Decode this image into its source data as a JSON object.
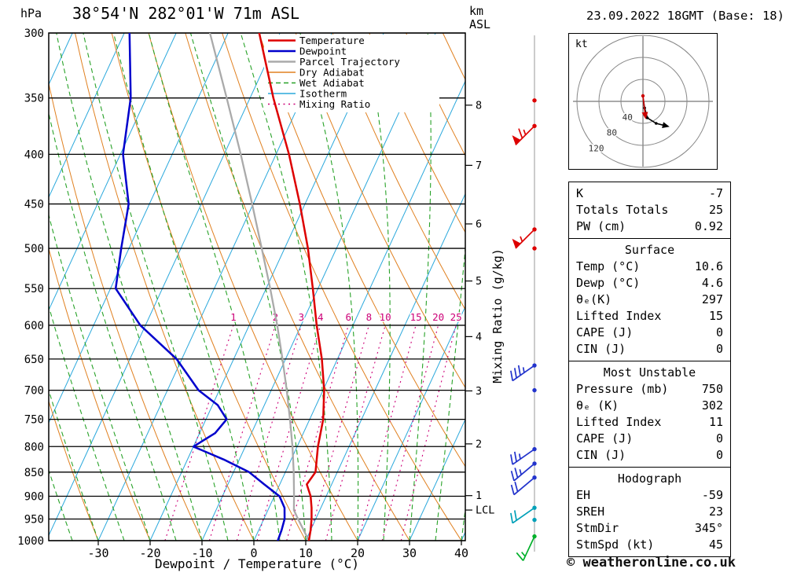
{
  "header": {
    "station": "38°54'N 282°01'W 71m ASL",
    "datetime": "23.09.2022 18GMT (Base: 18)"
  },
  "footer": {
    "copyright": "© weatheronline.co.uk"
  },
  "axes": {
    "pressure_unit": "hPa",
    "km_unit_line1": "km",
    "km_unit_line2": "ASL",
    "pressure_ticks": [
      300,
      350,
      400,
      450,
      500,
      550,
      600,
      650,
      700,
      750,
      800,
      850,
      900,
      950,
      1000
    ],
    "temp_ticks": [
      -30,
      -20,
      -10,
      0,
      10,
      20,
      30,
      40
    ],
    "temp_axis_label": "Dewpoint / Temperature (°C)",
    "km_ticks": [
      1,
      2,
      3,
      4,
      5,
      6,
      7,
      8
    ],
    "mixing_axis_label": "Mixing Ratio (g/kg)",
    "lcl_label": "LCL"
  },
  "colors": {
    "temperature": "#dd0000",
    "dewpoint": "#0000cc",
    "parcel": "#aaaaaa",
    "dry_adiabat": "#e08020",
    "wet_adiabat": "#28a228",
    "isotherm": "#2aa8dc",
    "mixing_ratio": "#cc0077",
    "pressure_line": "#000000",
    "wind_staff": "#999999"
  },
  "legend": {
    "entries": [
      {
        "label": "Temperature",
        "key": "temperature",
        "style": "solid"
      },
      {
        "label": "Dewpoint",
        "key": "dewpoint",
        "style": "solid"
      },
      {
        "label": "Parcel Trajectory",
        "key": "parcel",
        "style": "solid"
      },
      {
        "label": "Dry Adiabat",
        "key": "dry_adiabat",
        "style": "solid"
      },
      {
        "label": "Wet Adiabat",
        "key": "wet_adiabat",
        "style": "dashed"
      },
      {
        "label": "Isotherm",
        "key": "isotherm",
        "style": "solid"
      },
      {
        "label": "Mixing Ratio",
        "key": "mixing_ratio",
        "style": "dotted"
      }
    ]
  },
  "chart_data": {
    "type": "line",
    "projection": "skew-T log-P",
    "x_axis": {
      "label": "Dewpoint / Temperature (°C)",
      "range_c": [
        -40,
        40
      ]
    },
    "y_axis": {
      "label": "hPa",
      "scale": "log",
      "range_hpa": [
        1000,
        300
      ]
    },
    "series": [
      {
        "name": "Temperature",
        "points_p_T": [
          [
            1000,
            10.6
          ],
          [
            975,
            10.0
          ],
          [
            950,
            9.2
          ],
          [
            925,
            8.2
          ],
          [
            900,
            7.0
          ],
          [
            875,
            5.2
          ],
          [
            850,
            5.8
          ],
          [
            800,
            4.0
          ],
          [
            750,
            2.6
          ],
          [
            700,
            0.2
          ],
          [
            650,
            -3.0
          ],
          [
            600,
            -7.0
          ],
          [
            550,
            -11.0
          ],
          [
            500,
            -15.5
          ],
          [
            450,
            -21.0
          ],
          [
            400,
            -27.5
          ],
          [
            350,
            -35.5
          ],
          [
            300,
            -44.0
          ]
        ]
      },
      {
        "name": "Dewpoint",
        "points_p_T": [
          [
            1000,
            4.6
          ],
          [
            975,
            4.4
          ],
          [
            950,
            4.0
          ],
          [
            925,
            3.0
          ],
          [
            900,
            1.0
          ],
          [
            875,
            -3.0
          ],
          [
            850,
            -7.0
          ],
          [
            825,
            -13.0
          ],
          [
            800,
            -20.0
          ],
          [
            775,
            -17.0
          ],
          [
            750,
            -16.0
          ],
          [
            725,
            -19.0
          ],
          [
            700,
            -24.0
          ],
          [
            650,
            -31.0
          ],
          [
            600,
            -41.0
          ],
          [
            550,
            -49.0
          ],
          [
            500,
            -51.5
          ],
          [
            450,
            -54.0
          ],
          [
            400,
            -59.5
          ],
          [
            350,
            -63.0
          ],
          [
            300,
            -69.0
          ]
        ]
      },
      {
        "name": "Parcel Trajectory",
        "points_p_T": [
          [
            1000,
            10.6
          ],
          [
            950,
            6.6
          ],
          [
            930,
            5.0
          ],
          [
            900,
            3.8
          ],
          [
            850,
            1.6
          ],
          [
            800,
            -0.9
          ],
          [
            750,
            -3.8
          ],
          [
            700,
            -7.0
          ],
          [
            650,
            -10.6
          ],
          [
            600,
            -14.6
          ],
          [
            550,
            -19.2
          ],
          [
            500,
            -24.4
          ],
          [
            450,
            -30.2
          ],
          [
            400,
            -36.8
          ],
          [
            350,
            -44.5
          ],
          [
            300,
            -53.5
          ]
        ]
      }
    ],
    "mixing_ratio_lines_g_kg": [
      1,
      2,
      3,
      4,
      6,
      8,
      10,
      15,
      20,
      25
    ],
    "lcl_pressure_hpa": 930,
    "wind_barbs": [
      {
        "p_hpa": 352,
        "type": "dot",
        "color": "#dd0000"
      },
      {
        "p_hpa": 374,
        "type": "barb",
        "speed_kt": 65,
        "dir_deg": 225,
        "color": "#dd0000"
      },
      {
        "p_hpa": 478,
        "type": "barb",
        "speed_kt": 55,
        "dir_deg": 225,
        "color": "#dd0000"
      },
      {
        "p_hpa": 500,
        "type": "dot",
        "color": "#dd0000"
      },
      {
        "p_hpa": 660,
        "type": "barb",
        "speed_kt": 35,
        "dir_deg": 235,
        "color": "#2233cc"
      },
      {
        "p_hpa": 700,
        "type": "dot",
        "color": "#2233cc"
      },
      {
        "p_hpa": 805,
        "type": "barb",
        "speed_kt": 25,
        "dir_deg": 235,
        "color": "#2233cc"
      },
      {
        "p_hpa": 833,
        "type": "barb",
        "speed_kt": 25,
        "dir_deg": 230,
        "color": "#2233cc"
      },
      {
        "p_hpa": 861,
        "type": "barb",
        "speed_kt": 20,
        "dir_deg": 230,
        "color": "#2233cc"
      },
      {
        "p_hpa": 925,
        "type": "barb",
        "speed_kt": 20,
        "dir_deg": 235,
        "color": "#00a0b8"
      },
      {
        "p_hpa": 952,
        "type": "dot",
        "color": "#00a0b8"
      },
      {
        "p_hpa": 990,
        "type": "barb",
        "speed_kt": 15,
        "dir_deg": 205,
        "color": "#00b02a"
      }
    ]
  },
  "hodograph": {
    "unit": "kt",
    "rings_kt": [
      40,
      80,
      120
    ],
    "trace_kt": [
      [
        0,
        8
      ],
      [
        3,
        -12
      ],
      [
        8,
        -30
      ],
      [
        24,
        -40
      ],
      [
        40,
        -44
      ]
    ],
    "storm_vector_kt": [
      [
        0,
        10
      ],
      [
        4,
        -24
      ]
    ]
  },
  "stats": {
    "groups": [
      {
        "rows": [
          [
            "K",
            "-7"
          ],
          [
            "Totals Totals",
            "25"
          ],
          [
            "PW (cm)",
            "0.92"
          ]
        ]
      },
      {
        "header": "Surface",
        "rows": [
          [
            "Temp (°C)",
            "10.6"
          ],
          [
            "Dewp (°C)",
            "4.6"
          ],
          [
            "θₑ(K)",
            "297"
          ],
          [
            "Lifted Index",
            "15"
          ],
          [
            "CAPE (J)",
            "0"
          ],
          [
            "CIN (J)",
            "0"
          ]
        ]
      },
      {
        "header": "Most Unstable",
        "rows": [
          [
            "Pressure (mb)",
            "750"
          ],
          [
            "θₑ (K)",
            "302"
          ],
          [
            "Lifted Index",
            "11"
          ],
          [
            "CAPE (J)",
            "0"
          ],
          [
            "CIN (J)",
            "0"
          ]
        ]
      },
      {
        "header": "Hodograph",
        "rows": [
          [
            "EH",
            "-59"
          ],
          [
            "SREH",
            "23"
          ],
          [
            "StmDir",
            "345°"
          ],
          [
            "StmSpd (kt)",
            "45"
          ]
        ]
      }
    ]
  }
}
